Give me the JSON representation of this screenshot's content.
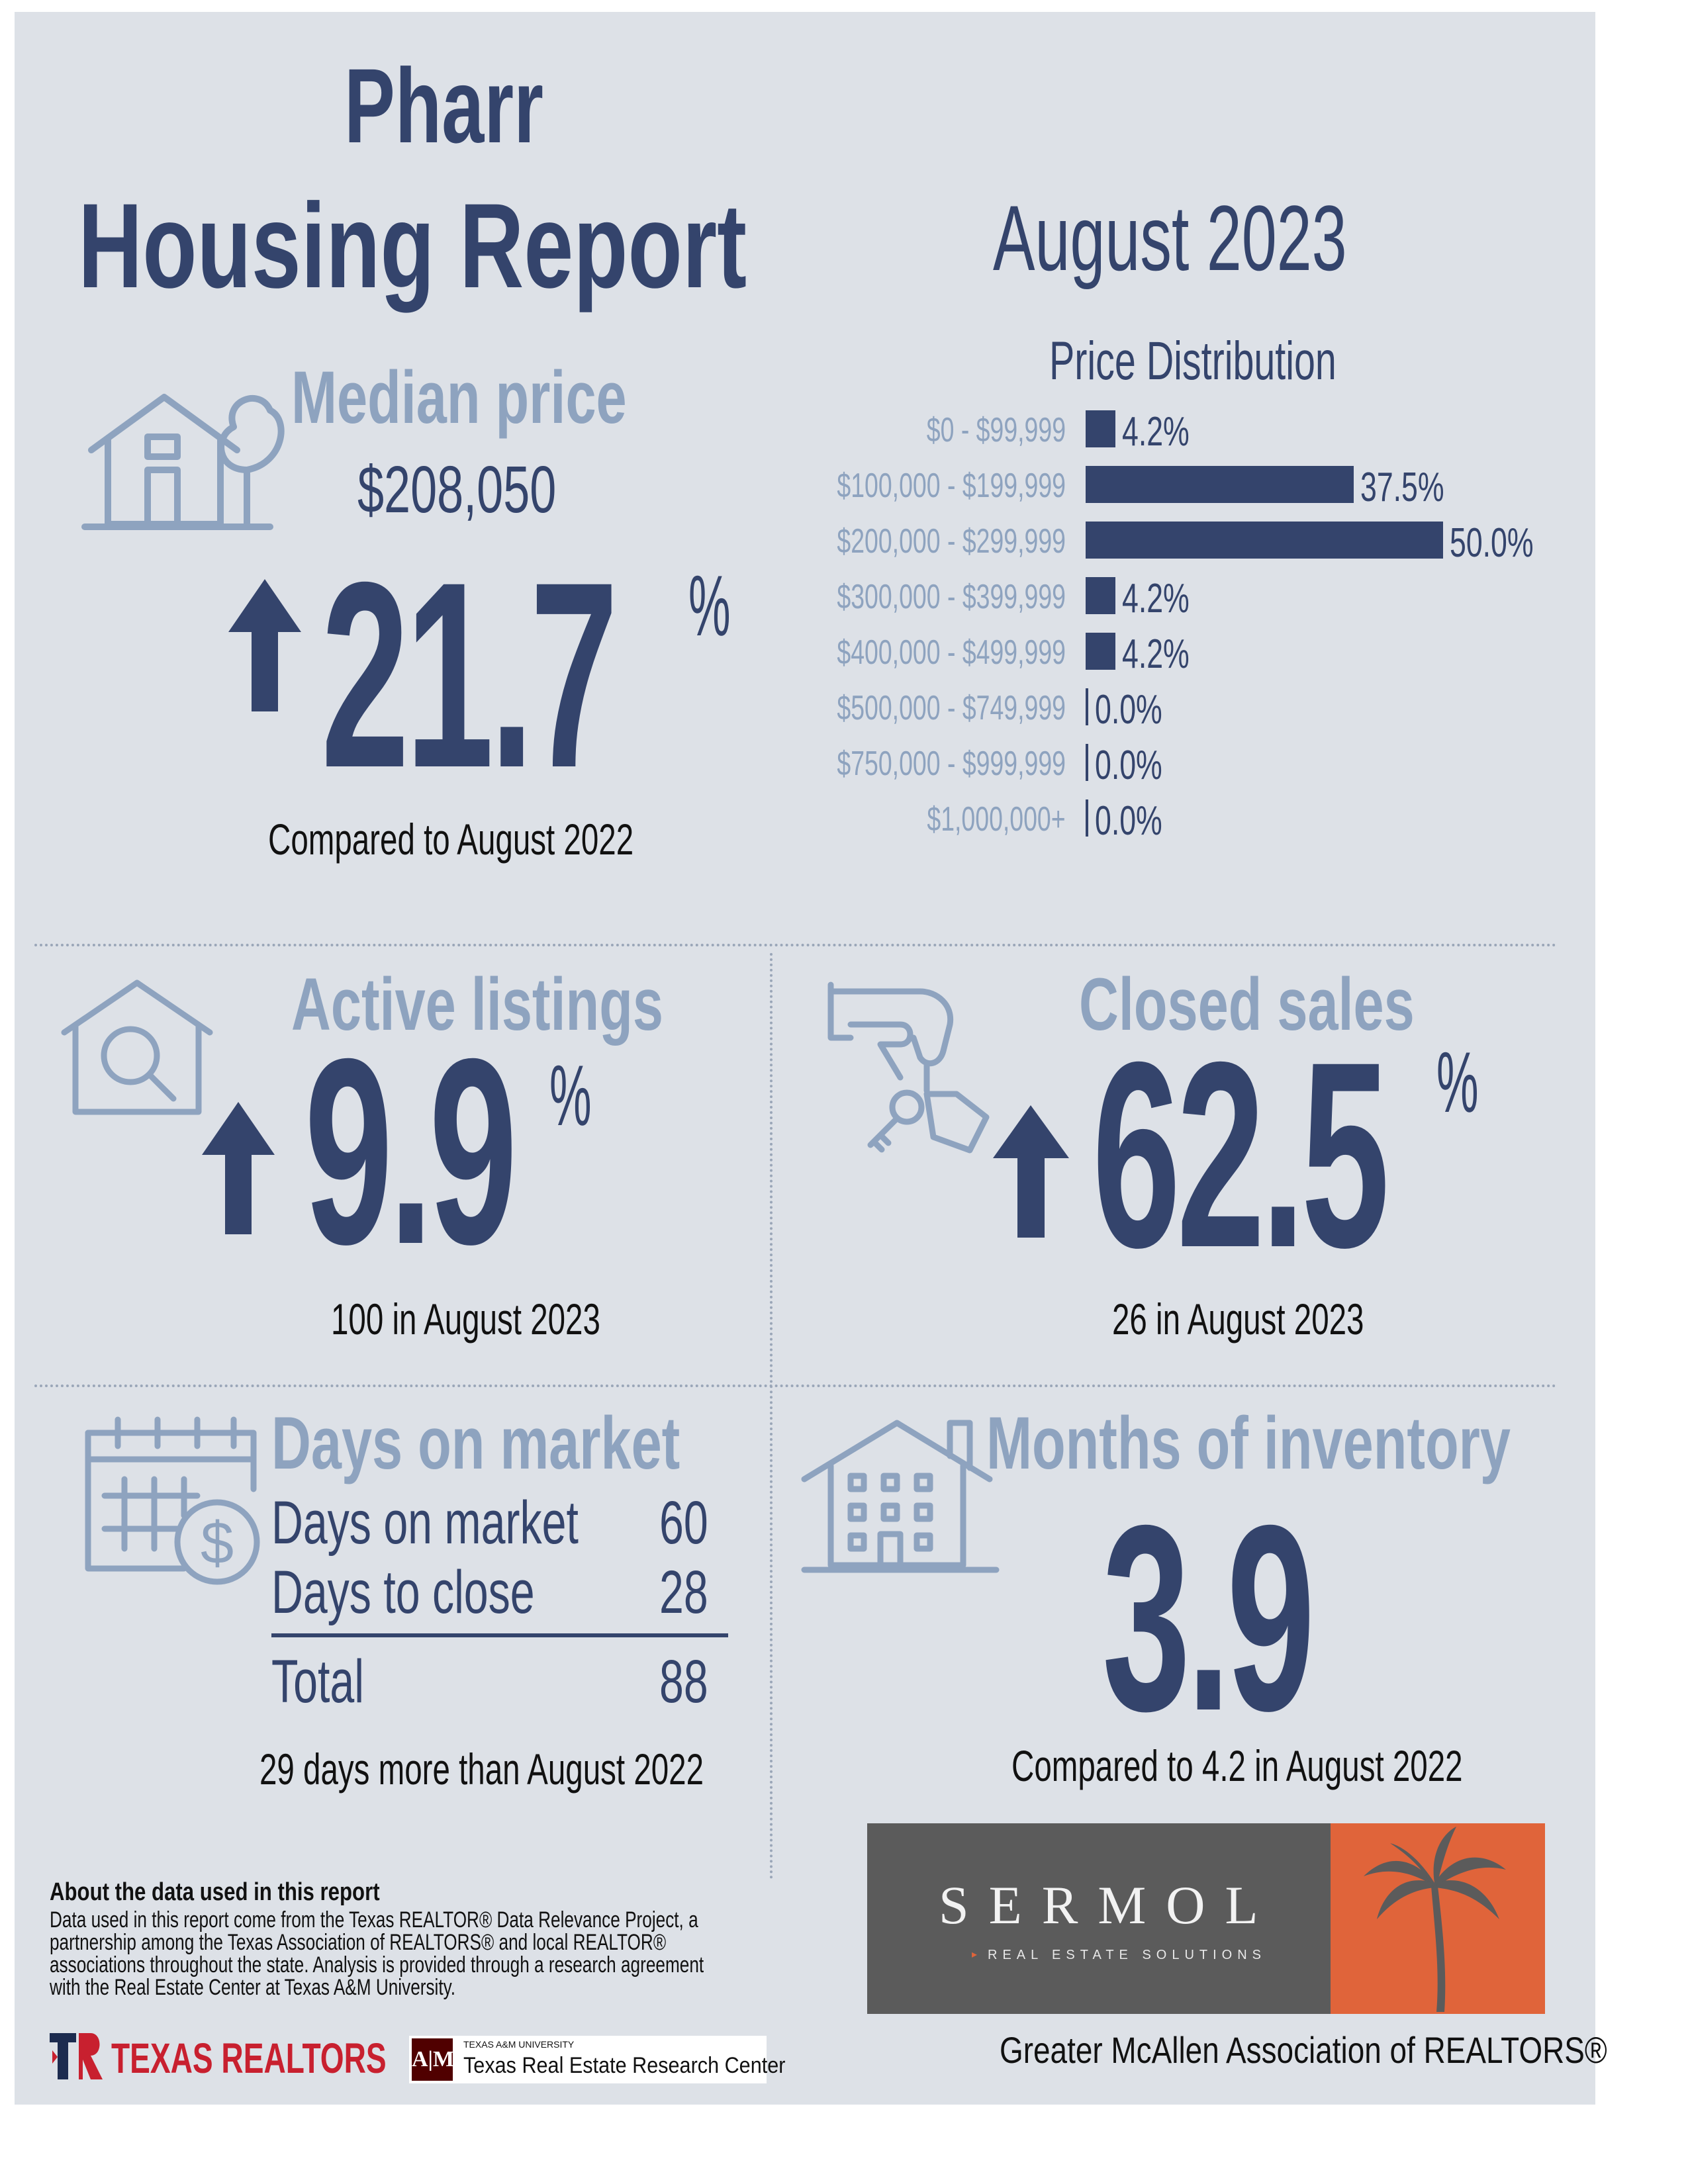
{
  "header": {
    "city": "Pharr",
    "title": "Housing Report",
    "period": "August 2023"
  },
  "median_price": {
    "label": "Median price",
    "value": "$208,050",
    "change": "21.7",
    "unit": "%",
    "direction": "up",
    "comparison": "Compared to August 2022"
  },
  "chart_data": {
    "type": "bar",
    "title": "Price Distribution",
    "categories": [
      "$0 - $99,999",
      "$100,000 - $199,999",
      "$200,000 - $299,999",
      "$300,000 - $399,999",
      "$400,000 - $499,999",
      "$500,000 - $749,999",
      "$750,000 - $999,999",
      "$1,000,000+"
    ],
    "values": [
      4.2,
      37.5,
      50.0,
      4.2,
      4.2,
      0.0,
      0.0,
      0.0
    ],
    "labels": [
      "4.2%",
      "37.5%",
      "50.0%",
      "4.2%",
      "4.2%",
      "0.0%",
      "0.0%",
      "0.0%"
    ],
    "orientation": "horizontal",
    "xlim": [
      0,
      50
    ],
    "color": "#34446c"
  },
  "active_listings": {
    "label": "Active listings",
    "change": "9.9",
    "unit": "%",
    "direction": "up",
    "detail": "100 in August 2023"
  },
  "closed_sales": {
    "label": "Closed sales",
    "change": "62.5",
    "unit": "%",
    "direction": "up",
    "detail": "26 in August 2023"
  },
  "days_on_market": {
    "label": "Days on market",
    "rows": [
      {
        "label": "Days on market",
        "value": "60"
      },
      {
        "label": "Days to close",
        "value": "28"
      }
    ],
    "total_label": "Total",
    "total_value": "88",
    "comparison": "29 days more than August 2022"
  },
  "months_inventory": {
    "label": "Months of inventory",
    "value": "3.9",
    "comparison": "Compared to 4.2 in August 2022"
  },
  "about": {
    "heading": "About the data used in this report",
    "lines": [
      "Data used in this report come from the Texas REALTOR® Data Relevance Project, a",
      "partnership among the Texas Association of REALTORS® and local REALTOR®",
      "associations throughout the state. Analysis is provided through a research agreement",
      "with the Real Estate Center at Texas A&M University."
    ]
  },
  "logos": {
    "texas_realtors": "TEXAS REALTORS",
    "tamu_small": "TEXAS A&M UNIVERSITY",
    "tamu_center": "Texas Real Estate Research Center",
    "sermol_name": "SERMOL",
    "sermol_tagline": "REAL ESTATE SOLUTIONS",
    "association": "Greater McAllen Association of REALTORS®"
  },
  "colors": {
    "background": "#dde1e7",
    "navy": "#34446c",
    "muted": "#8ea3bf",
    "sermol_gray": "#5b5b5b",
    "sermol_orange": "#e0643a",
    "texas_red": "#c8202f"
  },
  "icons": [
    "house-tree-icon",
    "house-search-icon",
    "hand-keys-icon",
    "calendar-dollar-icon",
    "apartment-building-icon",
    "up-arrow-icon",
    "palm-tree-icon"
  ]
}
